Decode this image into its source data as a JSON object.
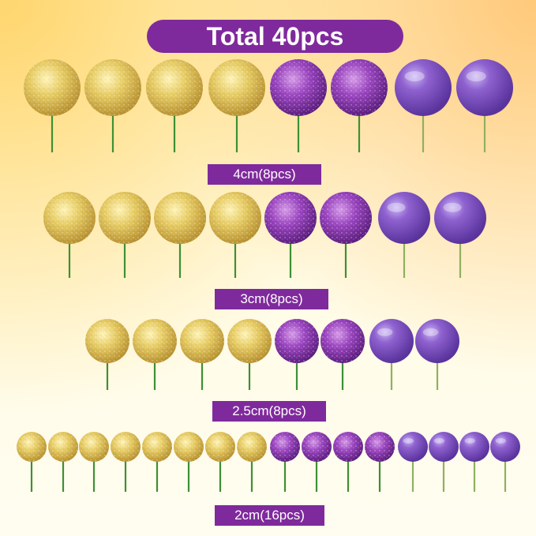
{
  "title": "Total 40pcs",
  "rows": [
    {
      "label": "4cm(8pcs)"
    },
    {
      "label": "3cm(8pcs)"
    },
    {
      "label": "2.5cm(8pcs)"
    },
    {
      "label": "2cm(16pcs)"
    }
  ],
  "colors": {
    "gold": "#e8cf6a",
    "purple_glitter": "#8b3fb0",
    "purple_pearl": "#8a5cc7",
    "label_bg": "#7f2a9c",
    "stick": "#4c9a3a"
  }
}
